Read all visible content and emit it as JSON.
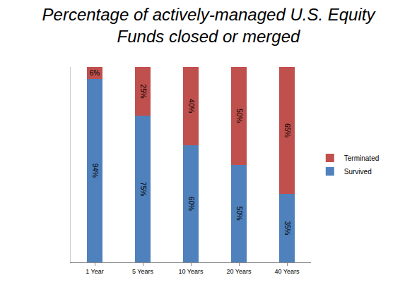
{
  "chart_data": {
    "type": "bar",
    "title": "Percentage of actively-managed U.S. Equity\nFunds closed or merged",
    "categories": [
      "1 Year",
      "5 Years",
      "10 Years",
      "20 Years",
      "40 Years"
    ],
    "series": [
      {
        "name": "Survived",
        "color": "#4f81bd",
        "values": [
          94,
          75,
          60,
          50,
          35
        ],
        "value_labels": [
          "94%",
          "75%",
          "60%",
          "50%",
          "35%"
        ]
      },
      {
        "name": "Terminated",
        "color": "#c0504d",
        "values": [
          6,
          25,
          40,
          50,
          65
        ],
        "value_labels": [
          "6%",
          "25%",
          "40%",
          "50%",
          "65%"
        ]
      }
    ],
    "stacked": true,
    "data_labels": true,
    "ylim": [
      0,
      100
    ],
    "tick_labels": "x",
    "grid": false,
    "legend": "right"
  }
}
